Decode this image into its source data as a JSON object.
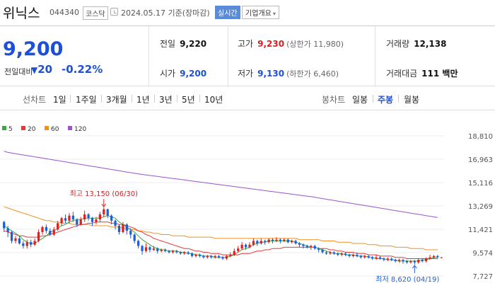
{
  "header": {
    "name": "위닉스",
    "code": "044340",
    "market": "코스닥",
    "date": "2024.05.17 기준(장마감)",
    "realtime": "실시간",
    "company_info": "기업개요",
    "caret": "▾"
  },
  "summary": {
    "price": "9,200",
    "change_label": "전일대비",
    "change_arrow": "▼",
    "change_abs": "20",
    "change_pct": "-0.22%",
    "prev_close": {
      "label": "전일",
      "value": "9,220"
    },
    "high": {
      "label": "고가",
      "value": "9,230",
      "sub": "(상한가 11,980)"
    },
    "volume": {
      "label": "거래량",
      "value": "12,138"
    },
    "open": {
      "label": "시가",
      "value": "9,200"
    },
    "low": {
      "label": "저가",
      "value": "9,130",
      "sub": "(하한가 6,460)"
    },
    "amount": {
      "label": "거래대금",
      "value": "111 백만"
    }
  },
  "period_bar": {
    "line_chart_label": "선차트",
    "line_periods": [
      "1일",
      "1주일",
      "3개월",
      "1년",
      "3년",
      "5년",
      "10년"
    ],
    "candle_chart_label": "봉차트",
    "candle_periods": [
      "일봉",
      "주봉",
      "월봉"
    ],
    "active_candle": 1
  },
  "chart_data": {
    "type": "candlestick",
    "interval": "주봉",
    "y_ticks": [
      "18,810",
      "16,963",
      "15,116",
      "13,269",
      "11,421",
      "9,574",
      "7,727"
    ],
    "ylim": [
      7727,
      18810
    ],
    "legend": [
      {
        "name": "5",
        "color": "#3aa845"
      },
      {
        "name": "20",
        "color": "#e03a3a"
      },
      {
        "name": "60",
        "color": "#f0901e"
      },
      {
        "name": "120",
        "color": "#9a55cc"
      }
    ],
    "high_annotation": "최고 13,150 (06/30)",
    "low_annotation": "최저 8,620 (04/19)",
    "high_value": 13150,
    "low_value": 8620,
    "high_index": 26,
    "low_index": 107,
    "candles": [
      [
        12000,
        11500,
        12100,
        11200
      ],
      [
        11500,
        11200,
        11700,
        10800
      ],
      [
        11200,
        10500,
        11300,
        10300
      ],
      [
        10500,
        10700,
        10900,
        10300
      ],
      [
        10700,
        10300,
        10900,
        10200
      ],
      [
        10300,
        10100,
        10500,
        9900
      ],
      [
        10100,
        10400,
        10600,
        9900
      ],
      [
        10400,
        10200,
        10600,
        10000
      ],
      [
        10200,
        10500,
        10700,
        10100
      ],
      [
        10500,
        11200,
        11400,
        10400
      ],
      [
        11200,
        11600,
        11700,
        11000
      ],
      [
        11600,
        11300,
        11800,
        11100
      ],
      [
        11300,
        11000,
        11500,
        10900
      ],
      [
        11000,
        11400,
        11600,
        10900
      ],
      [
        11400,
        11900,
        12100,
        11300
      ],
      [
        11900,
        12300,
        12400,
        11700
      ],
      [
        12300,
        12100,
        12600,
        11900
      ],
      [
        12100,
        12500,
        12700,
        11900
      ],
      [
        12500,
        12200,
        12800,
        12000
      ],
      [
        12200,
        11800,
        12300,
        11600
      ],
      [
        11800,
        12200,
        12400,
        11700
      ],
      [
        12200,
        12600,
        12900,
        12000
      ],
      [
        12600,
        12300,
        12700,
        12100
      ],
      [
        12300,
        12000,
        12400,
        11700
      ],
      [
        12000,
        12200,
        12400,
        11800
      ],
      [
        12200,
        12600,
        12800,
        12000
      ],
      [
        12600,
        13000,
        13150,
        12400
      ],
      [
        13000,
        12500,
        13050,
        12300
      ],
      [
        12500,
        12100,
        12600,
        11800
      ],
      [
        12100,
        11700,
        12200,
        11400
      ],
      [
        11700,
        11200,
        11800,
        11000
      ],
      [
        11200,
        11800,
        12000,
        11100
      ],
      [
        11800,
        11300,
        11900,
        11000
      ],
      [
        11300,
        11000,
        11500,
        10700
      ],
      [
        11000,
        10500,
        11100,
        10300
      ],
      [
        10500,
        10100,
        10600,
        9900
      ],
      [
        10100,
        9700,
        10200,
        9400
      ],
      [
        9700,
        10000,
        10300,
        9600
      ],
      [
        10000,
        9800,
        10100,
        9600
      ],
      [
        9800,
        9900,
        10100,
        9700
      ],
      [
        9900,
        9700,
        10000,
        9500
      ],
      [
        9700,
        9800,
        9900,
        9600
      ],
      [
        9800,
        9700,
        9900,
        9600
      ],
      [
        9700,
        9600,
        9800,
        9500
      ],
      [
        9600,
        9700,
        9800,
        9500
      ],
      [
        9700,
        9600,
        9800,
        9500
      ],
      [
        9600,
        9500,
        9700,
        9400
      ],
      [
        9500,
        9600,
        9700,
        9400
      ],
      [
        9600,
        9500,
        9700,
        9400
      ],
      [
        9500,
        9300,
        9600,
        9200
      ],
      [
        9300,
        9400,
        9500,
        9200
      ],
      [
        9400,
        9300,
        9500,
        9200
      ],
      [
        9300,
        9200,
        9400,
        9100
      ],
      [
        9200,
        9300,
        9400,
        9100
      ],
      [
        9300,
        9200,
        9400,
        9100
      ],
      [
        9200,
        9300,
        9400,
        9100
      ],
      [
        9300,
        9200,
        9400,
        9100
      ],
      [
        9200,
        9100,
        9300,
        9000
      ],
      [
        9100,
        9300,
        9400,
        9000
      ],
      [
        9300,
        9400,
        9600,
        9200
      ],
      [
        9400,
        9700,
        9900,
        9300
      ],
      [
        9700,
        9900,
        10100,
        9600
      ],
      [
        9900,
        10200,
        10400,
        9800
      ],
      [
        10200,
        10000,
        10300,
        9800
      ],
      [
        10000,
        10200,
        10400,
        9900
      ],
      [
        10200,
        10500,
        10700,
        10100
      ],
      [
        10500,
        10300,
        10600,
        10100
      ],
      [
        10300,
        10500,
        10700,
        10200
      ],
      [
        10500,
        10400,
        10600,
        10200
      ],
      [
        10400,
        10600,
        10700,
        10300
      ],
      [
        10600,
        10500,
        10700,
        10300
      ],
      [
        10500,
        10600,
        10800,
        10400
      ],
      [
        10600,
        10500,
        10700,
        10300
      ],
      [
        10500,
        10600,
        10700,
        10400
      ],
      [
        10600,
        10400,
        10700,
        10300
      ],
      [
        10400,
        10500,
        10600,
        10300
      ],
      [
        10500,
        10300,
        10600,
        10200
      ],
      [
        10300,
        10200,
        10400,
        10000
      ],
      [
        10200,
        10100,
        10300,
        9900
      ],
      [
        10100,
        10000,
        10200,
        9900
      ],
      [
        10000,
        10100,
        10200,
        9800
      ],
      [
        10100,
        9900,
        10200,
        9800
      ],
      [
        9900,
        9800,
        10000,
        9600
      ],
      [
        9800,
        9600,
        9900,
        9500
      ],
      [
        9600,
        9500,
        9700,
        9400
      ],
      [
        9500,
        9600,
        9700,
        9400
      ],
      [
        9600,
        9500,
        9700,
        9400
      ],
      [
        9500,
        9400,
        9600,
        9300
      ],
      [
        9400,
        9500,
        9600,
        9300
      ],
      [
        9500,
        9400,
        9600,
        9300
      ],
      [
        9400,
        9300,
        9500,
        9200
      ],
      [
        9300,
        9400,
        9500,
        9200
      ],
      [
        9400,
        9300,
        9600,
        9200
      ],
      [
        9300,
        9200,
        9400,
        9100
      ],
      [
        9200,
        9300,
        9400,
        9100
      ],
      [
        9300,
        9200,
        9400,
        9100
      ],
      [
        9200,
        9100,
        9300,
        9000
      ],
      [
        9100,
        9200,
        9400,
        9000
      ],
      [
        9200,
        9100,
        9300,
        9000
      ],
      [
        9100,
        9000,
        9200,
        8900
      ],
      [
        9000,
        9100,
        9200,
        8900
      ],
      [
        9100,
        9000,
        9200,
        8900
      ],
      [
        9000,
        8900,
        9100,
        8800
      ],
      [
        8900,
        9000,
        9100,
        8800
      ],
      [
        9000,
        8900,
        9100,
        8700
      ],
      [
        8900,
        8800,
        9000,
        8700
      ],
      [
        8800,
        8900,
        9000,
        8700
      ],
      [
        8900,
        8800,
        9000,
        8620
      ],
      [
        8800,
        9000,
        9100,
        8700
      ],
      [
        9000,
        8900,
        9100,
        8800
      ],
      [
        8900,
        9100,
        9200,
        8800
      ],
      [
        9100,
        9200,
        9400,
        9000
      ],
      [
        9200,
        9300,
        9400,
        9100
      ],
      [
        9300,
        9220,
        9400,
        9100
      ],
      [
        9200,
        9200,
        9230,
        9130
      ]
    ],
    "ma5": [
      11700,
      11500,
      11300,
      11100,
      10900,
      10600,
      10400,
      10300,
      10300,
      10500,
      10700,
      10900,
      11200,
      11300,
      11500,
      11700,
      11800,
      12000,
      12100,
      12200,
      12200,
      12300,
      12300,
      12300,
      12300,
      12300,
      12400,
      12500,
      12400,
      12300,
      12000,
      11800,
      11600,
      11400,
      11200,
      10900,
      10600,
      10400,
      10200,
      10000,
      9900,
      9800,
      9800,
      9700,
      9700,
      9700,
      9600,
      9600,
      9500,
      9500,
      9400,
      9400,
      9300,
      9300,
      9300,
      9200,
      9200,
      9200,
      9200,
      9300,
      9400,
      9600,
      9800,
      9900,
      10000,
      10200,
      10300,
      10400,
      10400,
      10500,
      10500,
      10500,
      10500,
      10500,
      10500,
      10500,
      10400,
      10300,
      10200,
      10100,
      10000,
      10000,
      9900,
      9800,
      9700,
      9600,
      9500,
      9500,
      9500,
      9400,
      9400,
      9400,
      9300,
      9300,
      9300,
      9200,
      9200,
      9100,
      9100,
      9100,
      9000,
      9000,
      9000,
      8900,
      8900,
      8900,
      8900,
      8900,
      8900,
      9000,
      9000,
      9100,
      9200,
      9200
    ],
    "ma20": [
      11300,
      11200,
      11100,
      11000,
      10900,
      10900,
      10800,
      10800,
      10800,
      10800,
      10900,
      10900,
      11000,
      11100,
      11200,
      11300,
      11400,
      11500,
      11600,
      11700,
      11800,
      11800,
      11900,
      11900,
      12000,
      12000,
      12000,
      12000,
      11900,
      11900,
      11800,
      11800,
      11700,
      11600,
      11500,
      11300,
      11200,
      11000,
      10900,
      10700,
      10600,
      10500,
      10400,
      10300,
      10200,
      10100,
      10000,
      9900,
      9900,
      9800,
      9700,
      9700,
      9600,
      9600,
      9500,
      9500,
      9500,
      9400,
      9400,
      9400,
      9400,
      9400,
      9500,
      9500,
      9500,
      9600,
      9700,
      9700,
      9800,
      9800,
      9900,
      9900,
      9900,
      10000,
      10000,
      10000,
      10000,
      10000,
      10000,
      10000,
      10000,
      10000,
      9900,
      9900,
      9900,
      9800,
      9800,
      9700,
      9700,
      9600,
      9600,
      9600,
      9500,
      9500,
      9500,
      9400,
      9400,
      9400,
      9300,
      9300,
      9300,
      9300,
      9200,
      9200,
      9200,
      9100,
      9100,
      9100,
      9100,
      9100,
      9100,
      9100,
      9100,
      9100
    ],
    "ma60": [
      13200,
      13100,
      13000,
      12900,
      12800,
      12700,
      12600,
      12500,
      12400,
      12300,
      12200,
      12100,
      12100,
      12000,
      12000,
      11900,
      11900,
      11900,
      11800,
      11800,
      11800,
      11800,
      11800,
      11700,
      11700,
      11700,
      11700,
      11700,
      11600,
      11600,
      11600,
      11500,
      11500,
      11400,
      11400,
      11300,
      11300,
      11200,
      11200,
      11100,
      11100,
      11000,
      11000,
      11000,
      10900,
      10900,
      10900,
      10900,
      10800,
      10800,
      10800,
      10800,
      10800,
      10800,
      10800,
      10700,
      10700,
      10700,
      10700,
      10700,
      10700,
      10700,
      10700,
      10700,
      10700,
      10700,
      10700,
      10700,
      10700,
      10700,
      10700,
      10700,
      10700,
      10700,
      10700,
      10700,
      10700,
      10600,
      10600,
      10600,
      10600,
      10600,
      10600,
      10500,
      10500,
      10500,
      10500,
      10400,
      10400,
      10400,
      10400,
      10300,
      10300,
      10300,
      10300,
      10200,
      10200,
      10200,
      10100,
      10100,
      10100,
      10100,
      10000,
      10000,
      10000,
      10000,
      9900,
      9900,
      9900,
      9900,
      9800,
      9800,
      9800,
      9800
    ],
    "ma120": [
      17600,
      17500,
      17450,
      17400,
      17350,
      17300,
      17250,
      17200,
      17150,
      17100,
      17050,
      17000,
      16950,
      16900,
      16850,
      16800,
      16750,
      16700,
      16650,
      16600,
      16550,
      16500,
      16450,
      16400,
      16350,
      16300,
      16250,
      16200,
      16150,
      16100,
      16050,
      16000,
      15950,
      15900,
      15850,
      15800,
      15760,
      15720,
      15680,
      15640,
      15600,
      15560,
      15520,
      15480,
      15440,
      15400,
      15360,
      15320,
      15280,
      15240,
      15200,
      15160,
      15120,
      15080,
      15040,
      15000,
      14960,
      14920,
      14880,
      14840,
      14800,
      14760,
      14720,
      14680,
      14640,
      14600,
      14560,
      14520,
      14480,
      14440,
      14400,
      14360,
      14320,
      14280,
      14240,
      14200,
      14160,
      14120,
      14080,
      14040,
      14000,
      13950,
      13900,
      13850,
      13800,
      13750,
      13700,
      13650,
      13600,
      13550,
      13500,
      13450,
      13400,
      13350,
      13300,
      13250,
      13200,
      13150,
      13100,
      13050,
      13000,
      12950,
      12900,
      12850,
      12800,
      12750,
      12700,
      12650,
      12600,
      12550,
      12500,
      12450,
      12400,
      12350
    ]
  }
}
